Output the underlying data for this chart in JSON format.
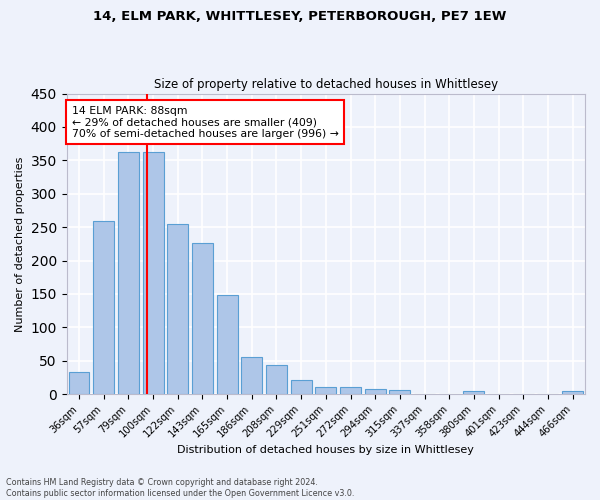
{
  "title1": "14, ELM PARK, WHITTLESEY, PETERBOROUGH, PE7 1EW",
  "title2": "Size of property relative to detached houses in Whittlesey",
  "xlabel": "Distribution of detached houses by size in Whittlesey",
  "ylabel": "Number of detached properties",
  "categories": [
    "36sqm",
    "57sqm",
    "79sqm",
    "100sqm",
    "122sqm",
    "143sqm",
    "165sqm",
    "186sqm",
    "208sqm",
    "229sqm",
    "251sqm",
    "272sqm",
    "294sqm",
    "315sqm",
    "337sqm",
    "358sqm",
    "380sqm",
    "401sqm",
    "423sqm",
    "444sqm",
    "466sqm"
  ],
  "values": [
    33,
    259,
    363,
    363,
    255,
    226,
    148,
    56,
    44,
    21,
    11,
    11,
    8,
    6,
    0,
    0,
    4,
    0,
    0,
    0,
    4
  ],
  "bar_color": "#aec6e8",
  "bar_edge_color": "#5a9fd4",
  "annotation_text": "14 ELM PARK: 88sqm\n← 29% of detached houses are smaller (409)\n70% of semi-detached houses are larger (996) →",
  "annotation_box_color": "white",
  "annotation_box_edge_color": "red",
  "vline_color": "red",
  "ylim": [
    0,
    450
  ],
  "yticks": [
    0,
    50,
    100,
    150,
    200,
    250,
    300,
    350,
    400,
    450
  ],
  "bg_color": "#eef2fb",
  "grid_color": "white",
  "footnote": "Contains HM Land Registry data © Crown copyright and database right 2024.\nContains public sector information licensed under the Open Government Licence v3.0."
}
